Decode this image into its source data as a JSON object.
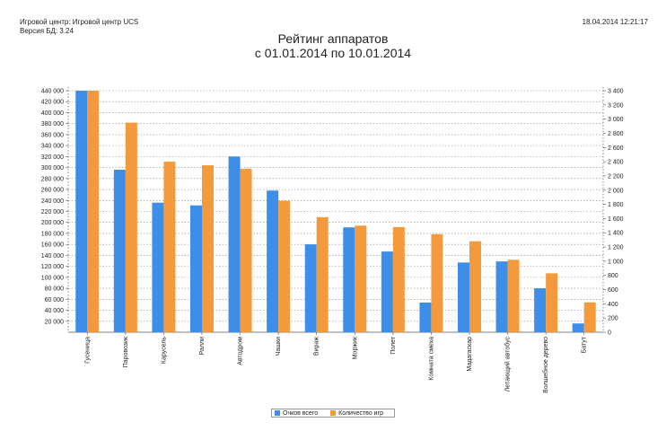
{
  "header": {
    "center_line": "Игровой центр: Игровой центр UCS",
    "db_version": "Версия БД: 3.24",
    "datetime": "18.04.2014 12:21:17"
  },
  "title_line1": "Рейтинг аппаратов",
  "title_line2": "с 01.01.2014 по 10.01.2014",
  "colors": {
    "series1": "#3c8ee8",
    "series2": "#f49a3c",
    "grid": "#888888"
  },
  "chart_data": {
    "type": "bar",
    "categories": [
      "Гусеница",
      "Паровозик",
      "Карусель",
      "Ралли",
      "Автодром",
      "Чашки",
      "Вираж",
      "Моржик",
      "Полет",
      "Комната смеха",
      "Мадагаскар",
      "Летающий автобус",
      "Волшебное дерево",
      "Батут"
    ],
    "series": [
      {
        "name": "Очков всего",
        "axis": "left",
        "values": [
          450000,
          296000,
          236000,
          231000,
          320000,
          258000,
          160000,
          191000,
          147000,
          54000,
          127000,
          129000,
          80000,
          16000
        ]
      },
      {
        "name": "Количество игр",
        "axis": "right",
        "values": [
          3400,
          2950,
          2400,
          2350,
          2300,
          1850,
          1620,
          1500,
          1480,
          1380,
          1280,
          1020,
          830,
          420
        ]
      }
    ],
    "y_left": {
      "min": 0,
      "max": 440000,
      "step": 20000,
      "ticks": [
        "20 000",
        "40 000",
        "60 000",
        "80 000",
        "100 000",
        "120 000",
        "140 000",
        "160 000",
        "180 000",
        "200 000",
        "220 000",
        "240 000",
        "260 000",
        "280 000",
        "300 000",
        "320 000",
        "340 000",
        "360 000",
        "380 000",
        "400 000",
        "420 000",
        "440 000"
      ]
    },
    "y_right": {
      "min": 0,
      "max": 3400,
      "step": 200,
      "ticks": [
        "0",
        "200",
        "400",
        "600",
        "800",
        "1 000",
        "1 200",
        "1 400",
        "1 600",
        "1 800",
        "2 000",
        "2 200",
        "2 400",
        "2 600",
        "2 800",
        "3 000",
        "3 200",
        "3 400"
      ]
    },
    "grid": true,
    "legend_position": "bottom-center"
  }
}
